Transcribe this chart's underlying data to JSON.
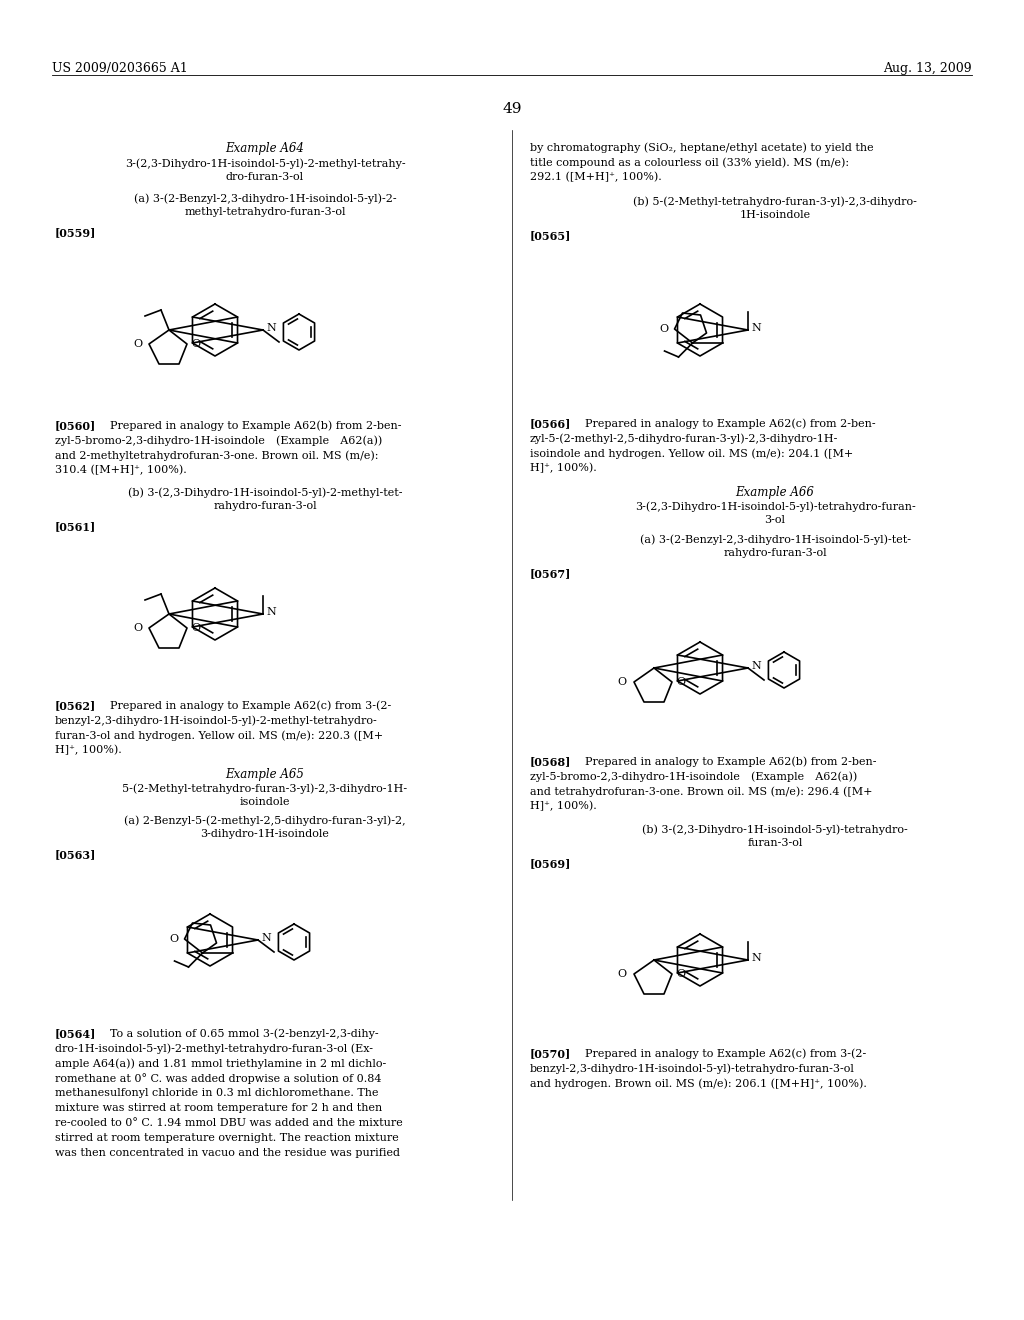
{
  "background_color": "#ffffff",
  "page_header_left": "US 2009/0203665 A1",
  "page_header_right": "Aug. 13, 2009",
  "page_number": "49"
}
